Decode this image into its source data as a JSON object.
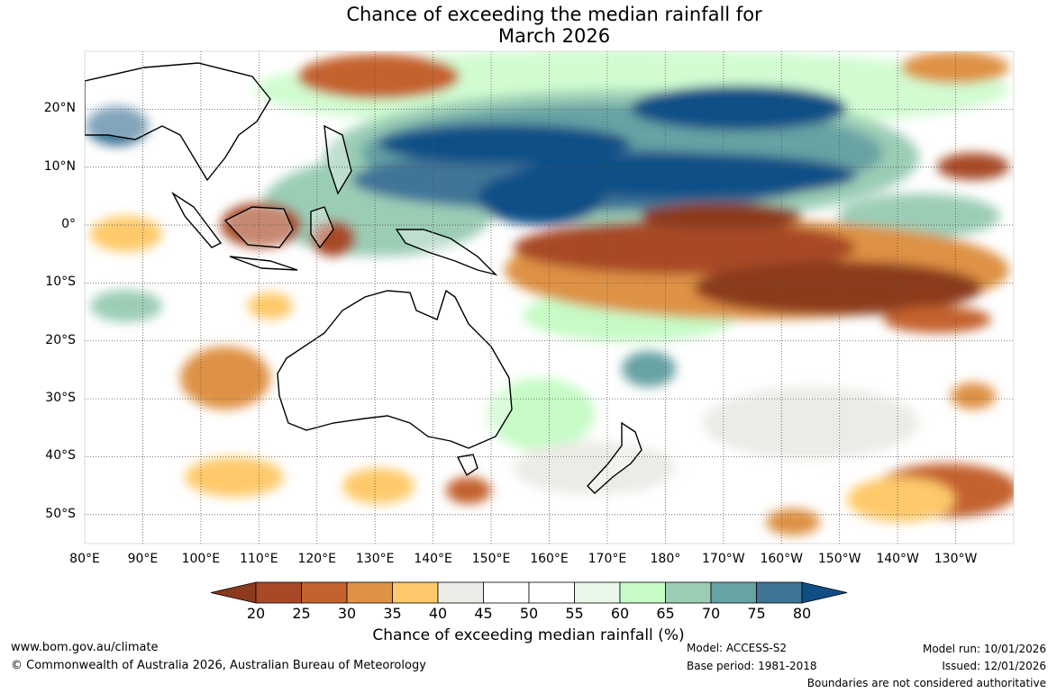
{
  "title": {
    "line1": "Chance of exceeding the median rainfall for",
    "line2": "March 2026"
  },
  "map": {
    "lat_labels": [
      "20°N",
      "10°N",
      "0°",
      "10°S",
      "20°S",
      "30°S",
      "40°S",
      "50°S"
    ],
    "lon_labels": [
      "80°E",
      "90°E",
      "100°E",
      "110°E",
      "120°E",
      "130°E",
      "140°E",
      "150°E",
      "160°E",
      "170°E",
      "180°",
      "170°W",
      "160°W",
      "150°W",
      "140°W",
      "130°W"
    ],
    "extent": {
      "lon_min": 80,
      "lon_max": 240,
      "lat_min": -55,
      "lat_max": 30
    }
  },
  "colorbar": {
    "ticks": [
      "20",
      "25",
      "30",
      "35",
      "40",
      "45",
      "50",
      "55",
      "60",
      "65",
      "70",
      "75",
      "80"
    ],
    "colors": [
      "#8b3a1e",
      "#a84826",
      "#c4622f",
      "#de9245",
      "#fec96a",
      "#ecebe6",
      "#ffffff",
      "#ffffff",
      "#e9f7e9",
      "#c6fbc6",
      "#9bcdb5",
      "#67a2a4",
      "#3f7497",
      "#104f86"
    ],
    "label": "Chance of exceeding median rainfall (%)"
  },
  "footer": {
    "website": "www.bom.gov.au/climate",
    "copyright": "© Commonwealth of Australia 2026, Australian Bureau of Meteorology",
    "model": "Model: ACCESS-S2",
    "base_period": "Base period: 1981-2018",
    "model_run": "Model run: 10/01/2026",
    "issued": "Issued: 12/01/2026",
    "disclaimer": "Boundaries are not considered authoritative"
  }
}
